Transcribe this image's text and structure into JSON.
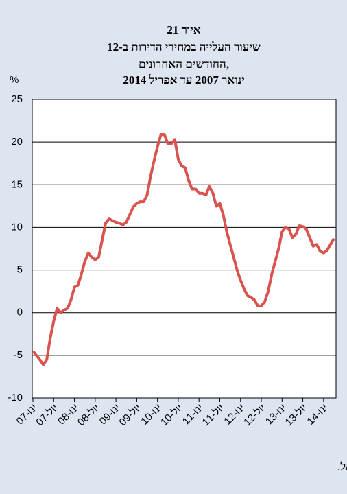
{
  "chart_data": {
    "type": "line",
    "title": [
      "איור 21",
      "שיעור העלייה במחירי הדירות ב-12",
      "החודשים האחרונים,",
      "ינואר 2007 עד אפריל 2014"
    ],
    "y_label": "%",
    "source": "המקור: הלשכה המרכזית לסטטיסטיקה ועיבודי בנק ישראל.",
    "categories": [
      "ינו-07",
      null,
      null,
      null,
      null,
      null,
      "יול-07",
      null,
      null,
      null,
      null,
      null,
      "ינו-08",
      null,
      null,
      null,
      null,
      null,
      "יול-08",
      null,
      null,
      null,
      null,
      null,
      "ינו-09",
      null,
      null,
      null,
      null,
      null,
      "יול-09",
      null,
      null,
      null,
      null,
      null,
      "ינו-10",
      null,
      null,
      null,
      null,
      null,
      "יול-10",
      null,
      null,
      null,
      null,
      null,
      "ינו-11",
      null,
      null,
      null,
      null,
      null,
      "יול-11",
      null,
      null,
      null,
      null,
      null,
      "ינו-12",
      null,
      null,
      null,
      null,
      null,
      "יול-12",
      null,
      null,
      null,
      null,
      null,
      "ינו-13",
      null,
      null,
      null,
      null,
      null,
      "יול-13",
      null,
      null,
      null,
      null,
      null,
      "ינו-14",
      null,
      null,
      null
    ],
    "series": [
      {
        "color": "#d9534f",
        "values": [
          -4.5,
          -5,
          -5.5,
          -6.1,
          -5.5,
          -3,
          -1,
          0.5,
          0,
          0.3,
          0.5,
          1.5,
          3,
          3.2,
          4.5,
          6,
          7,
          6.5,
          6.2,
          6.5,
          8.5,
          10.5,
          11,
          10.8,
          10.6,
          10.5,
          10.3,
          10.6,
          11.5,
          12.4,
          12.8,
          13,
          13,
          13.8,
          16,
          17.8,
          19.5,
          20.9,
          20.9,
          19.8,
          19.8,
          20.3,
          18,
          17.2,
          17,
          15.5,
          14.5,
          14.5,
          14,
          14,
          13.8,
          14.8,
          14,
          12.5,
          12.8,
          11.5,
          9.5,
          8,
          6.5,
          5,
          3.8,
          2.8,
          2,
          1.8,
          1.5,
          0.8,
          0.8,
          1.3,
          2.5,
          4.5,
          6,
          7.5,
          9.5,
          10,
          9.8,
          8.8,
          9.2,
          10.2,
          10.1,
          9.8,
          8.8,
          7.8,
          8,
          7.2,
          7,
          7.3,
          8,
          8.7
        ]
      }
    ],
    "ylim": [
      -10,
      25
    ],
    "yticks": [
      -10,
      -5,
      0,
      5,
      10,
      15,
      20,
      25
    ],
    "grid": true
  }
}
